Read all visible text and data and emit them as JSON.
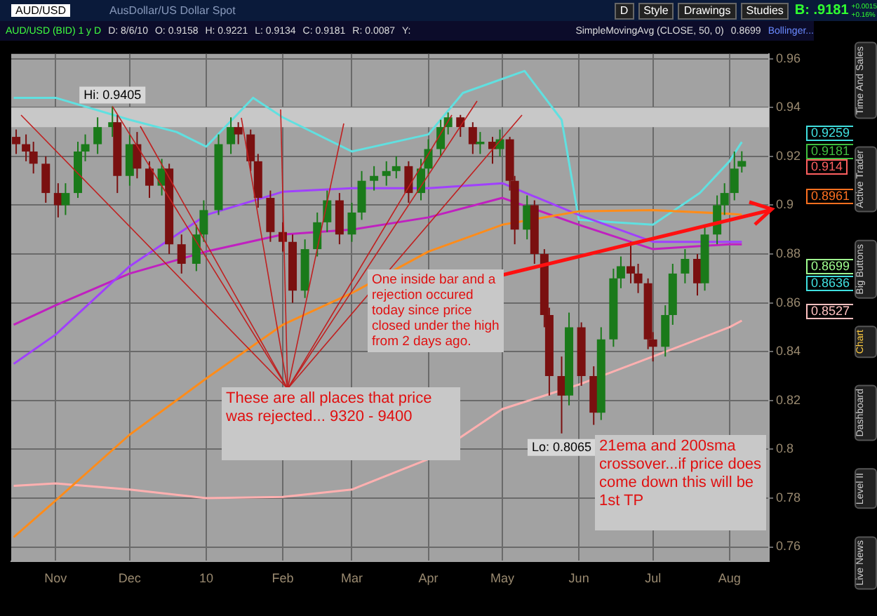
{
  "chart_data": {
    "type": "candlestick",
    "title": "AUD/USD (BID) 1 y D",
    "subtitle": "AusDollar/US Dollar Spot",
    "x": [
      "2009-10-16",
      "2009-10-20",
      "2009-10-23",
      "2009-10-28",
      "2009-11-02",
      "2009-11-05",
      "2009-11-10",
      "2009-11-13",
      "2009-11-18",
      "2009-11-24",
      "2009-11-26",
      "2009-12-01",
      "2009-12-04",
      "2009-12-09",
      "2009-12-14",
      "2009-12-17",
      "2009-12-22",
      "2009-12-28",
      "2009-12-31",
      "2010-01-06",
      "2010-01-11",
      "2010-01-14",
      "2010-01-19",
      "2010-01-22",
      "2010-01-27",
      "2010-02-01",
      "2010-02-05",
      "2010-02-10",
      "2010-02-15",
      "2010-02-19",
      "2010-02-24",
      "2010-03-01",
      "2010-03-05",
      "2010-03-10",
      "2010-03-15",
      "2010-03-19",
      "2010-03-24",
      "2010-03-29",
      "2010-04-01",
      "2010-04-06",
      "2010-04-09",
      "2010-04-14",
      "2010-04-19",
      "2010-04-22",
      "2010-04-27",
      "2010-04-30",
      "2010-05-04",
      "2010-05-06",
      "2010-05-11",
      "2010-05-14",
      "2010-05-18",
      "2010-05-20",
      "2010-05-25",
      "2010-05-28",
      "2010-06-02",
      "2010-06-07",
      "2010-06-10",
      "2010-06-15",
      "2010-06-18",
      "2010-06-22",
      "2010-06-25",
      "2010-06-29",
      "2010-07-01",
      "2010-07-06",
      "2010-07-09",
      "2010-07-14",
      "2010-07-19",
      "2010-07-22",
      "2010-07-27",
      "2010-07-30",
      "2010-08-03",
      "2010-08-06"
    ],
    "ohlc": [
      [
        0.928,
        0.931,
        0.921,
        0.925
      ],
      [
        0.925,
        0.929,
        0.918,
        0.922
      ],
      [
        0.922,
        0.926,
        0.913,
        0.917
      ],
      [
        0.917,
        0.92,
        0.901,
        0.905
      ],
      [
        0.905,
        0.909,
        0.895,
        0.9
      ],
      [
        0.9,
        0.909,
        0.896,
        0.905
      ],
      [
        0.905,
        0.926,
        0.903,
        0.922
      ],
      [
        0.922,
        0.929,
        0.918,
        0.925
      ],
      [
        0.925,
        0.936,
        0.921,
        0.932
      ],
      [
        0.932,
        0.9405,
        0.928,
        0.934
      ],
      [
        0.934,
        0.937,
        0.905,
        0.912
      ],
      [
        0.912,
        0.929,
        0.908,
        0.925
      ],
      [
        0.925,
        0.93,
        0.911,
        0.915
      ],
      [
        0.915,
        0.918,
        0.903,
        0.908
      ],
      [
        0.908,
        0.919,
        0.904,
        0.915
      ],
      [
        0.915,
        0.917,
        0.88,
        0.884
      ],
      [
        0.884,
        0.888,
        0.872,
        0.876
      ],
      [
        0.876,
        0.892,
        0.873,
        0.888
      ],
      [
        0.888,
        0.902,
        0.885,
        0.898
      ],
      [
        0.898,
        0.929,
        0.896,
        0.925
      ],
      [
        0.925,
        0.936,
        0.921,
        0.932
      ],
      [
        0.932,
        0.934,
        0.925,
        0.929
      ],
      [
        0.929,
        0.931,
        0.914,
        0.918
      ],
      [
        0.918,
        0.921,
        0.899,
        0.903
      ],
      [
        0.903,
        0.906,
        0.885,
        0.889
      ],
      [
        0.889,
        0.893,
        0.881,
        0.885
      ],
      [
        0.885,
        0.888,
        0.86,
        0.865
      ],
      [
        0.865,
        0.886,
        0.862,
        0.882
      ],
      [
        0.882,
        0.897,
        0.879,
        0.893
      ],
      [
        0.893,
        0.906,
        0.889,
        0.902
      ],
      [
        0.902,
        0.905,
        0.884,
        0.888
      ],
      [
        0.888,
        0.901,
        0.885,
        0.897
      ],
      [
        0.897,
        0.914,
        0.894,
        0.91
      ],
      [
        0.91,
        0.916,
        0.906,
        0.912
      ],
      [
        0.912,
        0.918,
        0.908,
        0.914
      ],
      [
        0.914,
        0.92,
        0.911,
        0.916
      ],
      [
        0.916,
        0.918,
        0.901,
        0.905
      ],
      [
        0.905,
        0.919,
        0.902,
        0.915
      ],
      [
        0.915,
        0.927,
        0.912,
        0.923
      ],
      [
        0.923,
        0.935,
        0.92,
        0.932
      ],
      [
        0.932,
        0.938,
        0.929,
        0.936
      ],
      [
        0.936,
        0.937,
        0.928,
        0.932
      ],
      [
        0.932,
        0.934,
        0.921,
        0.925
      ],
      [
        0.925,
        0.93,
        0.921,
        0.926
      ],
      [
        0.926,
        0.928,
        0.917,
        0.923
      ],
      [
        0.923,
        0.931,
        0.92,
        0.927
      ],
      [
        0.927,
        0.928,
        0.906,
        0.91
      ],
      [
        0.91,
        0.912,
        0.884,
        0.89
      ],
      [
        0.89,
        0.904,
        0.886,
        0.9
      ],
      [
        0.9,
        0.902,
        0.876,
        0.88
      ],
      [
        0.88,
        0.882,
        0.85,
        0.855
      ],
      [
        0.855,
        0.858,
        0.822,
        0.83
      ],
      [
        0.83,
        0.838,
        0.8065,
        0.822
      ],
      [
        0.822,
        0.856,
        0.818,
        0.85
      ],
      [
        0.85,
        0.852,
        0.826,
        0.83
      ],
      [
        0.83,
        0.834,
        0.81,
        0.815
      ],
      [
        0.815,
        0.85,
        0.812,
        0.845
      ],
      [
        0.845,
        0.874,
        0.842,
        0.87
      ],
      [
        0.87,
        0.879,
        0.866,
        0.875
      ],
      [
        0.875,
        0.885,
        0.868,
        0.872
      ],
      [
        0.872,
        0.876,
        0.864,
        0.868
      ],
      [
        0.868,
        0.87,
        0.841,
        0.845
      ],
      [
        0.845,
        0.848,
        0.836,
        0.842
      ],
      [
        0.842,
        0.859,
        0.838,
        0.855
      ],
      [
        0.855,
        0.876,
        0.851,
        0.872
      ],
      [
        0.872,
        0.882,
        0.868,
        0.878
      ],
      [
        0.878,
        0.88,
        0.863,
        0.868
      ],
      [
        0.868,
        0.892,
        0.865,
        0.888
      ],
      [
        0.888,
        0.904,
        0.884,
        0.9
      ],
      [
        0.9,
        0.909,
        0.896,
        0.905
      ],
      [
        0.905,
        0.922,
        0.902,
        0.915
      ],
      [
        0.9158,
        0.9221,
        0.9134,
        0.9181
      ]
    ],
    "series": [
      {
        "type": "line",
        "color": "#ff8c1a",
        "x": [
          "2009-10-15",
          "2009-11-01",
          "2009-12-01",
          "2010-01-01",
          "2010-02-01",
          "2010-03-01",
          "2010-04-01",
          "2010-05-01",
          "2010-06-01",
          "2010-07-01",
          "2010-08-01",
          "2010-08-06"
        ],
        "values": [
          0.764,
          0.779,
          0.806,
          0.829,
          0.851,
          0.864,
          0.881,
          0.892,
          0.8975,
          0.898,
          0.8965,
          0.8961
        ]
      },
      {
        "type": "line",
        "color": "#ffb0b0",
        "x": [
          "2009-10-15",
          "2009-11-01",
          "2009-12-01",
          "2010-01-01",
          "2010-02-01",
          "2010-03-01",
          "2010-04-01",
          "2010-05-01",
          "2010-06-01",
          "2010-07-01",
          "2010-08-01",
          "2010-08-06"
        ],
        "values": [
          0.785,
          0.786,
          0.7835,
          0.78,
          0.7805,
          0.7835,
          0.796,
          0.8165,
          0.8265,
          0.838,
          0.85,
          0.8527
        ]
      },
      {
        "type": "line",
        "color": "#a040ff",
        "x": [
          "2009-10-15",
          "2009-11-01",
          "2009-12-01",
          "2010-01-01",
          "2010-02-01",
          "2010-03-01",
          "2010-04-01",
          "2010-05-01",
          "2010-06-01",
          "2010-07-01",
          "2010-08-01",
          "2010-08-06"
        ],
        "values": [
          0.835,
          0.847,
          0.875,
          0.896,
          0.9055,
          0.907,
          0.907,
          0.909,
          0.896,
          0.885,
          0.885,
          0.885
        ]
      },
      {
        "type": "line",
        "color": "#c020c0",
        "x": [
          "2009-10-15",
          "2009-11-01",
          "2009-12-01",
          "2010-01-01",
          "2010-02-01",
          "2010-03-01",
          "2010-04-01",
          "2010-05-01",
          "2010-06-01",
          "2010-07-01",
          "2010-08-01",
          "2010-08-06"
        ],
        "values": [
          0.851,
          0.859,
          0.872,
          0.881,
          0.888,
          0.89,
          0.895,
          0.903,
          0.892,
          0.882,
          0.884,
          0.884
        ]
      },
      {
        "type": "line",
        "color": "#60e0e0",
        "x": [
          "2009-10-15",
          "2009-11-01",
          "2009-12-01",
          "2009-12-20",
          "2010-01-01",
          "2010-01-20",
          "2010-02-01",
          "2010-03-01",
          "2010-04-01",
          "2010-04-15",
          "2010-05-10",
          "2010-05-25",
          "2010-06-01",
          "2010-06-15",
          "2010-07-01",
          "2010-07-20",
          "2010-08-01",
          "2010-08-06"
        ],
        "values": [
          0.944,
          0.944,
          0.935,
          0.93,
          0.924,
          0.944,
          0.936,
          0.922,
          0.929,
          0.946,
          0.955,
          0.935,
          0.894,
          0.893,
          0.892,
          0.905,
          0.918,
          0.9259
        ]
      }
    ],
    "xlim": [
      "2009-10-14",
      "2010-08-17"
    ],
    "xticks": [
      {
        "value": "2009-11-01",
        "label": "Nov"
      },
      {
        "value": "2009-12-01",
        "label": "Dec"
      },
      {
        "value": "2010-01-01",
        "label": "10"
      },
      {
        "value": "2010-02-01",
        "label": "Feb"
      },
      {
        "value": "2010-03-01",
        "label": "Mar"
      },
      {
        "value": "2010-04-01",
        "label": "Apr"
      },
      {
        "value": "2010-05-01",
        "label": "May"
      },
      {
        "value": "2010-06-01",
        "label": "Jun"
      },
      {
        "value": "2010-07-01",
        "label": "Jul"
      },
      {
        "value": "2010-08-01",
        "label": "Aug"
      }
    ],
    "ylim": [
      0.754,
      0.962
    ],
    "yticks": [
      0.76,
      0.78,
      0.8,
      0.82,
      0.84,
      0.86,
      0.88,
      0.9,
      0.92,
      0.94,
      0.96
    ],
    "bands": [
      {
        "axis": "y",
        "from": 0.932,
        "to": 0.94,
        "color": "#c8c8c8"
      }
    ],
    "grid": true,
    "legend": false,
    "annotations": [
      "AUD/USD",
      "D",
      "Style",
      "Drawings",
      "Studies",
      "B: .9181",
      "+0.0015",
      "+0.16%",
      "D: 8/6/10",
      "O: 0.9158",
      "H: 0.9221",
      "L: 0.9134",
      "C: 0.9181",
      "R: 0.0087",
      "Y:",
      "SimpleMovingAvg (CLOSE, 50, 0)",
      "0.8699",
      "Bollinger...",
      "Time And Sales",
      "Active Trader",
      "Big Buttons",
      "Chart",
      "Dashboard",
      "Level II",
      "Live News",
      {
        "text": "These are all places that price was rejected... 9320 - 9400",
        "x": "2009-11-24",
        "y": 0.9405
      },
      "One inside bar and a rejection occured today since price closed under the high from 2 days ago.",
      "21ema and 200sma crossover...if price does come down this will be 1st TP",
      {
        "text": "Hi: 0.9405",
        "x": "2009-11-24",
        "y": 0.9405
      },
      {
        "text": "Lo: 0.8065",
        "x": "2010-05-25",
        "y": 0.8065
      },
      "0.9259",
      "0.9181",
      "0.914",
      "0.8961",
      "0.8699",
      "0.8636",
      "0.8527"
    ]
  }
}
